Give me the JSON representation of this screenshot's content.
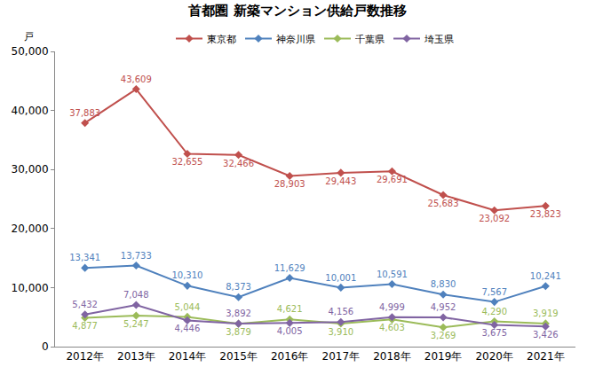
{
  "chart_data": {
    "type": "line",
    "title": "首都圏 新築マンション供給戸数推移",
    "y_label": "戸",
    "categories": [
      "2012年",
      "2013年",
      "2014年",
      "2015年",
      "2016年",
      "2017年",
      "2018年",
      "2019年",
      "2020年",
      "2021年"
    ],
    "series": [
      {
        "name": "東京都",
        "color": "#c0504d",
        "values": [
          37883,
          43609,
          32655,
          32466,
          28903,
          29443,
          29691,
          25683,
          23092,
          23823
        ],
        "value_labels": [
          "37,883",
          "43,609",
          "32,655",
          "32,466",
          "28,903",
          "29,443",
          "29,691",
          "25,683",
          "23,092",
          "23,823"
        ]
      },
      {
        "name": "神奈川県",
        "color": "#4f81bd",
        "values": [
          13341,
          13733,
          10310,
          8373,
          11629,
          10001,
          10591,
          8830,
          7567,
          10241
        ],
        "value_labels": [
          "13,341",
          "13,733",
          "10,310",
          "8,373",
          "11,629",
          "10,001",
          "10,591",
          "8,830",
          "7,567",
          "10,241"
        ]
      },
      {
        "name": "千葉県",
        "color": "#9bbb59",
        "values": [
          4877,
          5247,
          5044,
          3879,
          4621,
          3910,
          4603,
          3269,
          4290,
          3919
        ],
        "value_labels": [
          "4,877",
          "5,247",
          "5,044",
          "3,879",
          "4,621",
          "3,910",
          "4,603",
          "3,269",
          "4,290",
          "3,919"
        ]
      },
      {
        "name": "埼玉県",
        "color": "#8064a2",
        "values": [
          5432,
          7048,
          4446,
          3892,
          4005,
          4156,
          4999,
          4952,
          3675,
          3426
        ],
        "value_labels": [
          "5,432",
          "7,048",
          "4,446",
          "3,892",
          "4,005",
          "4,156",
          "4,999",
          "4,952",
          "3,675",
          "3,426"
        ]
      }
    ],
    "ylim": [
      0,
      50000
    ],
    "yticks": [
      0,
      {
        "value": 10000,
        "label": "10,000"
      },
      {
        "value": 20000,
        "label": "20,000"
      },
      {
        "value": 30000,
        "label": "30,000"
      },
      {
        "value": 40000,
        "label": "40,000"
      },
      {
        "value": 50000,
        "label": "50,000"
      }
    ],
    "grid": false,
    "legend": "top",
    "data_labels": true,
    "marker": "diamond"
  }
}
